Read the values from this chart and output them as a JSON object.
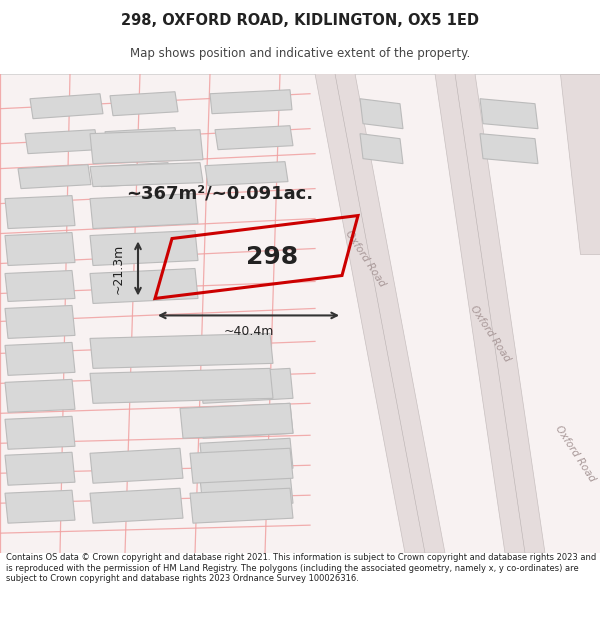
{
  "title": "298, OXFORD ROAD, KIDLINGTON, OX5 1ED",
  "subtitle": "Map shows position and indicative extent of the property.",
  "footer": "Contains OS data © Crown copyright and database right 2021. This information is subject to Crown copyright and database rights 2023 and is reproduced with the permission of HM Land Registry. The polygons (including the associated geometry, namely x, y co-ordinates) are subject to Crown copyright and database rights 2023 Ordnance Survey 100026316.",
  "bg_color": "#ffffff",
  "map_bg": "#f5eeee",
  "area_text": "~367m²/~0.091ac.",
  "property_label": "298",
  "dim_width": "~40.4m",
  "dim_height": "~21.3m",
  "road_label": "Oxford Road",
  "road_fill": "#e5dcdc",
  "road_edge": "#c8c0c0",
  "pink_color": "#f0a0a0",
  "property_color": "#cc0000",
  "building_fill": "#d8d8d8",
  "building_edge": "#bbbbbb",
  "text_color": "#222222",
  "dim_color": "#333333"
}
